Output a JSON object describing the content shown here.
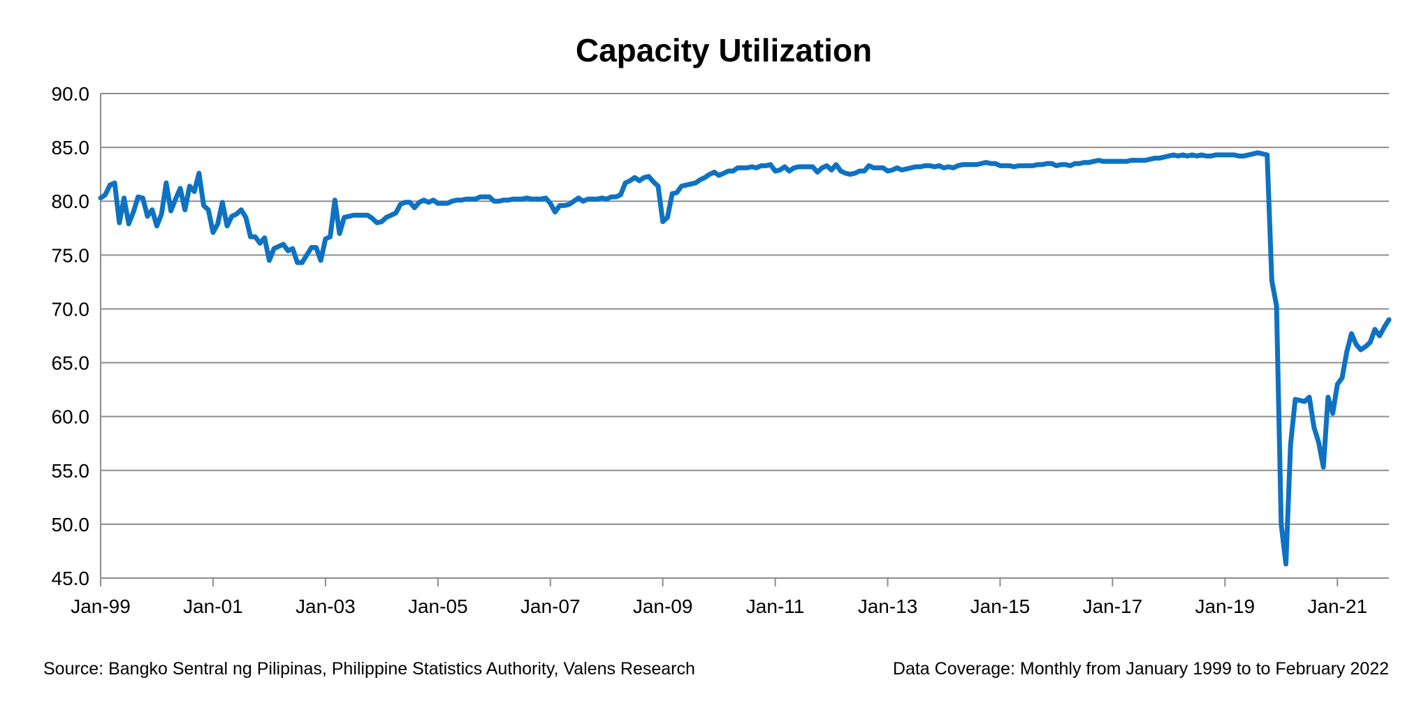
{
  "chart_data": {
    "type": "line",
    "title": "Capacity Utilization",
    "xlabel": "",
    "ylabel": "",
    "x_start": "1999-01",
    "x_end": "2022-02",
    "frequency": "monthly",
    "ylim": [
      45.0,
      90.0
    ],
    "y_ticks": [
      "45.0",
      "50.0",
      "55.0",
      "60.0",
      "65.0",
      "70.0",
      "75.0",
      "80.0",
      "85.0",
      "90.0"
    ],
    "x_ticks": [
      "Jan-99",
      "Jan-01",
      "Jan-03",
      "Jan-05",
      "Jan-07",
      "Jan-09",
      "Jan-11",
      "Jan-13",
      "Jan-15",
      "Jan-17",
      "Jan-19",
      "Jan-21"
    ],
    "grid": true,
    "legend": "none",
    "series": [
      {
        "color": "#0E72C3",
        "values": [
          80.3,
          80.6,
          81.5,
          81.7,
          78.0,
          80.3,
          77.9,
          79.0,
          80.4,
          80.3,
          78.6,
          79.2,
          77.7,
          78.8,
          81.7,
          79.1,
          80.2,
          81.2,
          79.2,
          81.4,
          80.9,
          82.6,
          79.6,
          79.2,
          77.1,
          77.9,
          79.9,
          77.7,
          78.6,
          78.8,
          79.2,
          78.5,
          76.7,
          76.7,
          76.1,
          76.6,
          74.5,
          75.6,
          75.8,
          76.0,
          75.4,
          75.6,
          74.3,
          74.3,
          75.0,
          75.7,
          75.7,
          74.5,
          76.5,
          76.7,
          80.1,
          77.0,
          78.5,
          78.6,
          78.7,
          78.7,
          78.7,
          78.7,
          78.4,
          78.0,
          78.1,
          78.5,
          78.7,
          78.9,
          79.7,
          79.9,
          79.9,
          79.4,
          79.9,
          80.1,
          79.9,
          80.1,
          79.8,
          79.8,
          79.8,
          80.0,
          80.1,
          80.1,
          80.2,
          80.2,
          80.2,
          80.4,
          80.4,
          80.4,
          80.0,
          80.0,
          80.1,
          80.1,
          80.2,
          80.2,
          80.2,
          80.3,
          80.2,
          80.2,
          80.2,
          80.3,
          79.8,
          79.0,
          79.6,
          79.6,
          79.7,
          80.0,
          80.3,
          80.0,
          80.2,
          80.2,
          80.2,
          80.3,
          80.2,
          80.4,
          80.4,
          80.6,
          81.7,
          81.9,
          82.2,
          81.9,
          82.2,
          82.3,
          81.8,
          81.4,
          78.1,
          78.5,
          80.7,
          80.8,
          81.4,
          81.5,
          81.6,
          81.7,
          82.0,
          82.2,
          82.5,
          82.7,
          82.4,
          82.6,
          82.8,
          82.8,
          83.1,
          83.1,
          83.1,
          83.2,
          83.1,
          83.3,
          83.3,
          83.4,
          82.8,
          82.9,
          83.2,
          82.8,
          83.1,
          83.2,
          83.2,
          83.2,
          83.2,
          82.7,
          83.1,
          83.3,
          82.9,
          83.4,
          82.8,
          82.6,
          82.5,
          82.6,
          82.8,
          82.8,
          83.3,
          83.1,
          83.1,
          83.1,
          82.8,
          82.9,
          83.1,
          82.9,
          83.0,
          83.1,
          83.2,
          83.2,
          83.3,
          83.3,
          83.2,
          83.3,
          83.1,
          83.2,
          83.1,
          83.3,
          83.4,
          83.4,
          83.4,
          83.4,
          83.5,
          83.6,
          83.5,
          83.5,
          83.3,
          83.3,
          83.3,
          83.2,
          83.3,
          83.3,
          83.3,
          83.3,
          83.4,
          83.4,
          83.5,
          83.5,
          83.3,
          83.4,
          83.4,
          83.3,
          83.5,
          83.5,
          83.6,
          83.6,
          83.7,
          83.8,
          83.7,
          83.7,
          83.7,
          83.7,
          83.7,
          83.7,
          83.8,
          83.8,
          83.8,
          83.8,
          83.9,
          84.0,
          84.0,
          84.1,
          84.2,
          84.3,
          84.2,
          84.3,
          84.2,
          84.3,
          84.2,
          84.3,
          84.2,
          84.2,
          84.3,
          84.3,
          84.3,
          84.3,
          84.3,
          84.2,
          84.2,
          84.3,
          84.4,
          84.5,
          84.4,
          84.3,
          72.6,
          70.3,
          50.0,
          46.3,
          57.4,
          61.6,
          61.5,
          61.4,
          61.8,
          59.0,
          57.6,
          55.3,
          61.8,
          60.3,
          63.0,
          63.6,
          66.0,
          67.7,
          66.7,
          66.2,
          66.5,
          66.9,
          68.1,
          67.5,
          68.3,
          69.0
        ]
      }
    ]
  },
  "footer": {
    "source": "Source: Bangko Sentral ng Pilipinas, Philippine Statistics Authority, Valens Research",
    "coverage": "Data Coverage: Monthly from January 1999 to  to February 2022"
  }
}
